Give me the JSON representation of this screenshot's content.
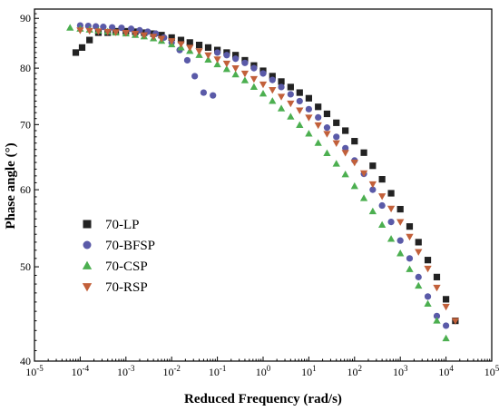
{
  "chart_data": {
    "type": "scatter",
    "xlabel": "Reduced Frequency (rad/s)",
    "ylabel": "Phase angle (°)",
    "xscale": "log",
    "yscale": "log",
    "xlim": [
      1e-05,
      100000.0
    ],
    "ylim": [
      40,
      92
    ],
    "xticks": [
      {
        "value": 1e-05,
        "base": "10",
        "exp": "-5"
      },
      {
        "value": 0.0001,
        "base": "10",
        "exp": "-4"
      },
      {
        "value": 0.001,
        "base": "10",
        "exp": "-3"
      },
      {
        "value": 0.01,
        "base": "10",
        "exp": "-2"
      },
      {
        "value": 0.1,
        "base": "10",
        "exp": "-1"
      },
      {
        "value": 1,
        "base": "10",
        "exp": "0"
      },
      {
        "value": 10,
        "base": "10",
        "exp": "1"
      },
      {
        "value": 100,
        "base": "10",
        "exp": "2"
      },
      {
        "value": 1000,
        "base": "10",
        "exp": "3"
      },
      {
        "value": 10000,
        "base": "10",
        "exp": "4"
      },
      {
        "value": 100000,
        "base": "10",
        "exp": "5"
      }
    ],
    "yticks": [
      40,
      50,
      60,
      70,
      80,
      90
    ],
    "legend_position": "left-center",
    "series": [
      {
        "name": "70-LP",
        "marker": "square",
        "color": "#222222",
        "x": [
          8e-05,
          0.00011,
          0.00016,
          0.00025,
          0.0004,
          0.0006,
          0.001,
          0.0016,
          0.0025,
          0.004,
          0.006,
          0.01,
          0.016,
          0.025,
          0.04,
          0.063,
          0.1,
          0.16,
          0.25,
          0.4,
          0.63,
          1,
          1.6,
          2.5,
          4,
          6.3,
          10,
          16,
          25,
          40,
          63,
          100,
          160,
          250,
          400,
          630,
          1000,
          1600,
          2500,
          4000,
          6300,
          10000,
          16000
        ],
        "y": [
          83,
          84,
          85.5,
          87,
          87,
          87.3,
          87.3,
          87.2,
          87,
          86.8,
          86.5,
          86,
          85.5,
          85,
          84.5,
          84,
          83.5,
          83,
          82.5,
          81.5,
          80.5,
          79.5,
          78.5,
          77.5,
          76.5,
          75.5,
          74.5,
          73,
          71.8,
          70.3,
          69,
          67.3,
          65.5,
          63.5,
          61.5,
          59.5,
          57.3,
          55,
          53,
          50.8,
          48.8,
          46.3,
          44
        ]
      },
      {
        "name": "70-BFSP",
        "marker": "circle",
        "color": "#5a5aa8",
        "x": [
          0.0001,
          0.00015,
          0.00022,
          0.00032,
          0.0005,
          0.0008,
          0.0013,
          0.002,
          0.003,
          0.0045,
          0.0068,
          0.01,
          0.015,
          0.022,
          0.032,
          0.05,
          0.08,
          0.1,
          0.16,
          0.25,
          0.4,
          0.63,
          1,
          1.6,
          2.5,
          4,
          6.3,
          10,
          16,
          25,
          40,
          63,
          100,
          160,
          250,
          400,
          630,
          1000,
          1600,
          2500,
          4000,
          6300,
          10000
        ],
        "y": [
          88.5,
          88.4,
          88.3,
          88.2,
          88.1,
          88,
          87.8,
          87.5,
          87.2,
          86.8,
          86,
          85,
          83.5,
          81.5,
          78.5,
          75.5,
          75,
          83,
          82.5,
          81.8,
          81,
          80,
          79,
          77.8,
          76.5,
          75.2,
          74,
          72.6,
          71.2,
          69.5,
          68,
          66.2,
          64.3,
          62.3,
          60,
          57.8,
          55.6,
          53.2,
          51,
          48.8,
          46.6,
          44.5,
          43.5
        ]
      },
      {
        "name": "70-CSP",
        "marker": "triangle-up",
        "color": "#4caf50",
        "x": [
          6e-05,
          0.0001,
          0.00016,
          0.00025,
          0.0004,
          0.0006,
          0.001,
          0.0016,
          0.0025,
          0.004,
          0.006,
          0.01,
          0.016,
          0.025,
          0.04,
          0.063,
          0.1,
          0.16,
          0.25,
          0.4,
          0.63,
          1,
          1.6,
          2.5,
          4,
          6.3,
          10,
          16,
          25,
          40,
          63,
          100,
          160,
          250,
          400,
          630,
          1000,
          1600,
          2500,
          4000,
          6300,
          10000
        ],
        "y": [
          88,
          87.8,
          87.6,
          87.4,
          87.2,
          87,
          86.8,
          86.5,
          86.2,
          85.8,
          85.3,
          84.6,
          84,
          83.3,
          82.5,
          81.6,
          80.7,
          79.8,
          78.8,
          77.7,
          76.5,
          75.3,
          74,
          72.7,
          71.3,
          69.9,
          68.5,
          67,
          65.4,
          63.8,
          62.2,
          60.5,
          58.8,
          57,
          55.2,
          53.4,
          51.6,
          49.7,
          47.8,
          45.8,
          44,
          42.2
        ]
      },
      {
        "name": "70-RSP",
        "marker": "triangle-down",
        "color": "#c2603a",
        "x": [
          0.0001,
          0.00016,
          0.00025,
          0.0004,
          0.0006,
          0.001,
          0.0016,
          0.0025,
          0.004,
          0.006,
          0.01,
          0.016,
          0.025,
          0.04,
          0.063,
          0.1,
          0.16,
          0.25,
          0.4,
          0.63,
          1,
          1.6,
          2.5,
          4,
          6.3,
          10,
          16,
          25,
          40,
          63,
          100,
          160,
          250,
          400,
          630,
          1000,
          1600,
          2500,
          4000,
          6300,
          10000,
          16000
        ],
        "y": [
          87.5,
          87.4,
          87.3,
          87.2,
          87.1,
          87,
          86.8,
          86.5,
          86.2,
          85.8,
          85.3,
          84.7,
          84,
          83.3,
          82.5,
          81.7,
          80.9,
          80,
          79,
          78,
          77,
          76,
          74.8,
          73.6,
          72.4,
          71.2,
          69.9,
          68.5,
          67,
          65.5,
          64,
          62.4,
          60.8,
          59.1,
          57.4,
          55.6,
          53.7,
          51.8,
          49.8,
          47.6,
          45.5,
          44
        ]
      }
    ]
  }
}
